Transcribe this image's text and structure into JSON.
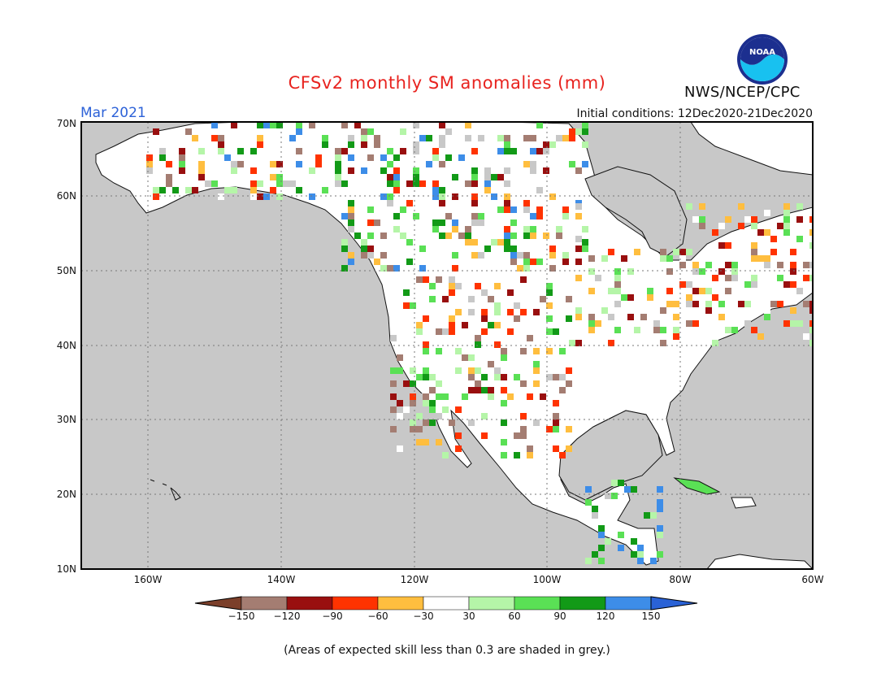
{
  "header": {
    "title": "CFSv2 monthly SM anomalies (mm)",
    "month": "Mar 2021",
    "initial_conditions": "Initial conditions: 12Dec2020-21Dec2020",
    "org": "NWS/NCEP/CPC",
    "logo_text": "NOAA"
  },
  "map": {
    "lat_labels": [
      "70N",
      "60N",
      "50N",
      "40N",
      "30N",
      "20N",
      "10N"
    ],
    "lon_labels": [
      "160W",
      "140W",
      "120W",
      "100W",
      "80W",
      "60W"
    ],
    "ocean_color": "#c8c8c8",
    "land_color": "#ffffff"
  },
  "legend": {
    "labels": [
      "-150",
      "-120",
      "-90",
      "-60",
      "-30",
      "30",
      "60",
      "90",
      "120",
      "150"
    ],
    "colors": [
      "#7b3f2a",
      "#a47d72",
      "#990f0f",
      "#ff3300",
      "#ffbe3f",
      "#ffffff",
      "#b5f5a8",
      "#5ae055",
      "#129a17",
      "#3d8de8",
      "#2a62d6"
    ]
  },
  "footnote": "(Areas of expected skill less than 0.3 are shaded in grey.)"
}
